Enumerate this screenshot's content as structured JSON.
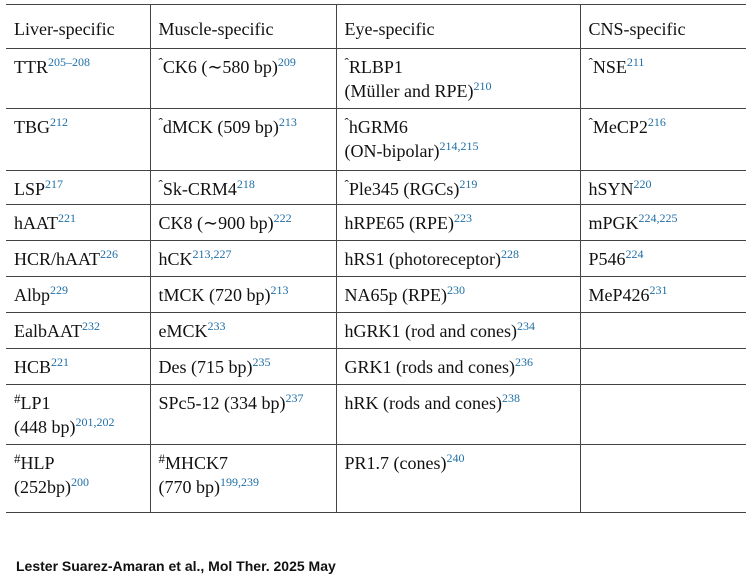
{
  "columns": [
    "Liver-specific",
    "Muscle-specific",
    "Eye-specific",
    "CNS-specific"
  ],
  "rows": [
    {
      "h": 60,
      "cells": [
        {
          "prefix": "",
          "lines": [
            {
              "text": "TTR",
              "sup": "205–208"
            }
          ]
        },
        {
          "prefix": "ˆ",
          "lines": [
            {
              "text": "CK6 (∼580 bp)",
              "sup": "209"
            }
          ]
        },
        {
          "prefix": "ˆ",
          "lines": [
            {
              "text": "RLBP1",
              "sup": ""
            },
            {
              "text": "(Müller and RPE)",
              "sup": "210"
            }
          ]
        },
        {
          "prefix": "ˆ",
          "lines": [
            {
              "text": "NSE",
              "sup": "211"
            }
          ]
        }
      ]
    },
    {
      "h": 62,
      "cells": [
        {
          "prefix": "",
          "lines": [
            {
              "text": "TBG",
              "sup": "212"
            }
          ]
        },
        {
          "prefix": "ˆ",
          "lines": [
            {
              "text": "dMCK (509 bp)",
              "sup": "213"
            }
          ]
        },
        {
          "prefix": "ˆ",
          "lines": [
            {
              "text": "hGRM6",
              "sup": ""
            },
            {
              "text": "(ON-bipolar)",
              "sup": "214,215"
            }
          ]
        },
        {
          "prefix": "ˆ",
          "lines": [
            {
              "text": "MeCP2",
              "sup": "216"
            }
          ]
        }
      ]
    },
    {
      "h": 34,
      "cells": [
        {
          "prefix": "",
          "lines": [
            {
              "text": "LSP",
              "sup": "217"
            }
          ]
        },
        {
          "prefix": "ˆ",
          "lines": [
            {
              "text": "Sk-CRM4",
              "sup": "218"
            }
          ]
        },
        {
          "prefix": "ˆ",
          "lines": [
            {
              "text": "Ple345 (RGCs)",
              "sup": "219"
            }
          ]
        },
        {
          "prefix": "",
          "lines": [
            {
              "text": "hSYN",
              "sup": "220"
            }
          ]
        }
      ]
    },
    {
      "h": 36,
      "cells": [
        {
          "prefix": "",
          "lines": [
            {
              "text": "hAAT",
              "sup": "221"
            }
          ]
        },
        {
          "prefix": "",
          "lines": [
            {
              "text": "CK8 (∼900 bp)",
              "sup": "222"
            }
          ]
        },
        {
          "prefix": "",
          "lines": [
            {
              "text": "hRPE65 (RPE)",
              "sup": "223"
            }
          ]
        },
        {
          "prefix": "",
          "lines": [
            {
              "text": "mPGK",
              "sup": "224,225"
            }
          ]
        }
      ]
    },
    {
      "h": 36,
      "cells": [
        {
          "prefix": "",
          "lines": [
            {
              "text": "HCR/hAAT",
              "sup": "226"
            }
          ]
        },
        {
          "prefix": "",
          "lines": [
            {
              "text": "hCK",
              "sup": "213,227"
            }
          ]
        },
        {
          "prefix": "",
          "lines": [
            {
              "text": "hRS1 (photoreceptor)",
              "sup": "228"
            }
          ]
        },
        {
          "prefix": "",
          "lines": [
            {
              "text": "P546",
              "sup": "224"
            }
          ]
        }
      ]
    },
    {
      "h": 36,
      "cells": [
        {
          "prefix": "",
          "lines": [
            {
              "text": "Albp",
              "sup": "229"
            }
          ]
        },
        {
          "prefix": "",
          "lines": [
            {
              "text": "tMCK (720 bp)",
              "sup": "213"
            }
          ]
        },
        {
          "prefix": "",
          "lines": [
            {
              "text": "NA65p (RPE)",
              "sup": "230"
            }
          ]
        },
        {
          "prefix": "",
          "lines": [
            {
              "text": "MeP426",
              "sup": "231"
            }
          ]
        }
      ]
    },
    {
      "h": 36,
      "cells": [
        {
          "prefix": "",
          "lines": [
            {
              "text": "EalbAAT",
              "sup": "232"
            }
          ]
        },
        {
          "prefix": "",
          "lines": [
            {
              "text": "eMCK",
              "sup": "233"
            }
          ]
        },
        {
          "prefix": "",
          "lines": [
            {
              "text": "hGRK1 (rod and cones)",
              "sup": "234"
            }
          ]
        },
        {
          "prefix": "",
          "lines": []
        }
      ]
    },
    {
      "h": 36,
      "cells": [
        {
          "prefix": "",
          "lines": [
            {
              "text": "HCB",
              "sup": "221"
            }
          ]
        },
        {
          "prefix": "",
          "lines": [
            {
              "text": "Des (715 bp)",
              "sup": "235"
            }
          ]
        },
        {
          "prefix": "",
          "lines": [
            {
              "text": "GRK1 (rods and cones)",
              "sup": "236"
            }
          ]
        },
        {
          "prefix": "",
          "lines": []
        }
      ]
    },
    {
      "h": 60,
      "cells": [
        {
          "prefix": "#",
          "lines": [
            {
              "text": "LP1",
              "sup": ""
            },
            {
              "text": "(448 bp)",
              "sup": "201,202"
            }
          ]
        },
        {
          "prefix": "",
          "lines": [
            {
              "text": "SPc5-12 (334 bp)",
              "sup": "237"
            }
          ]
        },
        {
          "prefix": "",
          "lines": [
            {
              "text": "hRK (rods and cones)",
              "sup": "238"
            }
          ]
        },
        {
          "prefix": "",
          "lines": []
        }
      ]
    },
    {
      "h": 68,
      "cells": [
        {
          "prefix": "#",
          "lines": [
            {
              "text": "HLP",
              "sup": ""
            },
            {
              "text": "(252bp)",
              "sup": "200"
            }
          ]
        },
        {
          "prefix": "#",
          "lines": [
            {
              "text": "MHCK7",
              "sup": ""
            },
            {
              "text": "(770 bp)",
              "sup": "199,239"
            }
          ]
        },
        {
          "prefix": "",
          "lines": [
            {
              "text": "PR1.7 (cones)",
              "sup": "240"
            }
          ]
        },
        {
          "prefix": "",
          "lines": []
        }
      ]
    }
  ],
  "citation": "Lester Suarez-Amaran et al., Mol Ther. 2025 May",
  "colors": {
    "superscript": "#1f6fa6",
    "text": "#111111",
    "rule": "#444444"
  }
}
